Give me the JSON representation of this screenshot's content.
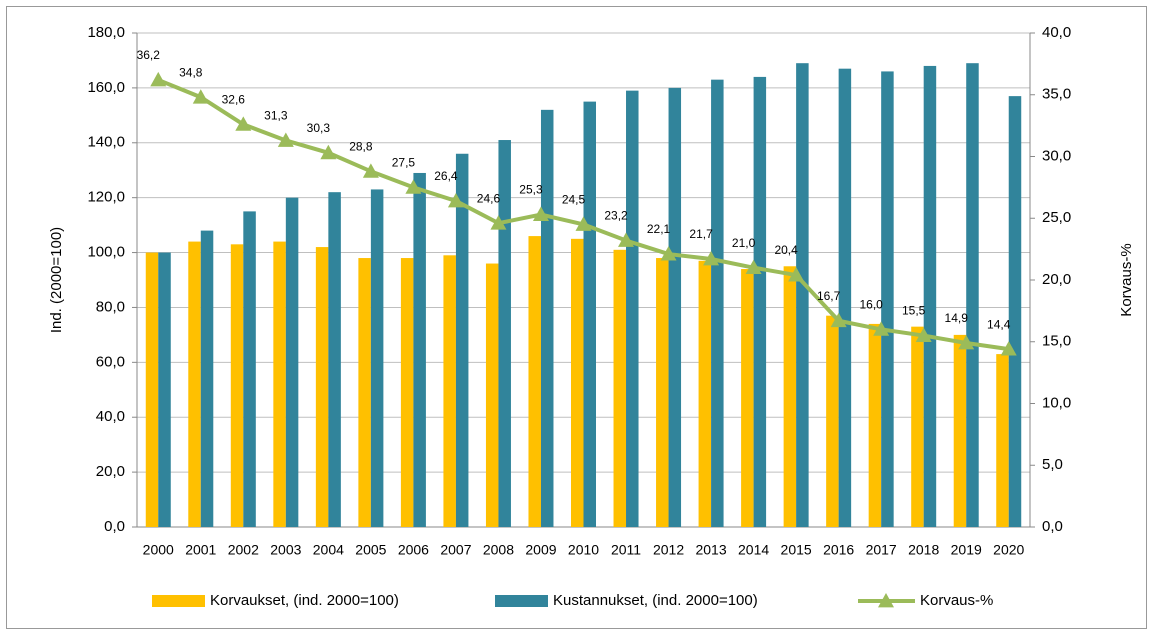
{
  "chart_data": {
    "type": "bar-line",
    "y_label": "Ind. (2000=100)",
    "y2_label": "Korvaus-%",
    "categories": [
      "2000",
      "2001",
      "2002",
      "2003",
      "2004",
      "2005",
      "2006",
      "2007",
      "2008",
      "2009",
      "2010",
      "2011",
      "2012",
      "2013",
      "2014",
      "2015",
      "2016",
      "2017",
      "2018",
      "2019",
      "2020"
    ],
    "series": [
      {
        "name": "Korvaukset, (ind. 2000=100)",
        "type": "bar",
        "color": "#ffc000",
        "values": [
          100,
          104,
          103,
          104,
          102,
          98,
          98,
          99,
          96,
          106,
          105,
          101,
          98,
          97,
          94,
          95,
          77,
          74,
          73,
          70,
          63
        ]
      },
      {
        "name": "Kustannukset, (ind. 2000=100)",
        "type": "bar",
        "color": "#31849b",
        "values": [
          100,
          108,
          115,
          120,
          122,
          123,
          129,
          136,
          141,
          152,
          155,
          159,
          160,
          163,
          164,
          169,
          167,
          166,
          168,
          169,
          157
        ]
      },
      {
        "name": "Korvaus-%",
        "type": "line",
        "axis": "y2",
        "color": "#9bbb59",
        "values": [
          36.2,
          34.8,
          32.6,
          31.3,
          30.3,
          28.8,
          27.5,
          26.4,
          24.6,
          25.3,
          24.5,
          23.2,
          22.1,
          21.7,
          21.0,
          20.4,
          16.7,
          16.0,
          15.5,
          14.9,
          14.4
        ],
        "value_labels": [
          "36,2",
          "34,8",
          "32,6",
          "31,3",
          "30,3",
          "28,8",
          "27,5",
          "26,4",
          "24,6",
          "25,3",
          "24,5",
          "23,2",
          "22,1",
          "21,7",
          "21,0",
          "20,4",
          "16,7",
          "16,0",
          "15,5",
          "14,9",
          "14,4"
        ]
      }
    ],
    "ylim": [
      0,
      180
    ],
    "yticks": [
      {
        "value": 0,
        "label": "0,0"
      },
      {
        "value": 20,
        "label": "20,0"
      },
      {
        "value": 40,
        "label": "40,0"
      },
      {
        "value": 60,
        "label": "60,0"
      },
      {
        "value": 80,
        "label": "80,0"
      },
      {
        "value": 100,
        "label": "100,0"
      },
      {
        "value": 120,
        "label": "120,0"
      },
      {
        "value": 140,
        "label": "140,0"
      },
      {
        "value": 160,
        "label": "160,0"
      },
      {
        "value": 180,
        "label": "180,0"
      }
    ],
    "y2lim": [
      0,
      40
    ],
    "y2ticks": [
      {
        "value": 0,
        "label": "0,0"
      },
      {
        "value": 5,
        "label": "5,0"
      },
      {
        "value": 10,
        "label": "10,0"
      },
      {
        "value": 15,
        "label": "15,0"
      },
      {
        "value": 20,
        "label": "20,0"
      },
      {
        "value": 25,
        "label": "25,0"
      },
      {
        "value": 30,
        "label": "30,0"
      },
      {
        "value": 35,
        "label": "35,0"
      },
      {
        "value": 40,
        "label": "40,0"
      }
    ],
    "grid": true,
    "legend": "bottom"
  }
}
